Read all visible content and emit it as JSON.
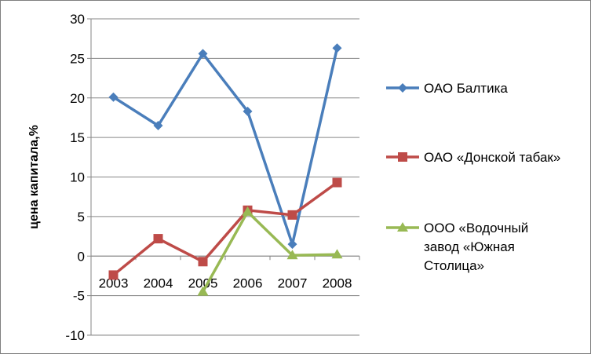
{
  "chart_data": {
    "type": "line",
    "categories": [
      "2003",
      "2004",
      "2005",
      "2006",
      "2007",
      "2008"
    ],
    "ylabel": "цена капитала,%",
    "xlabel": "",
    "title": "",
    "ylim": [
      -10,
      30
    ],
    "yticks": [
      "-10",
      "-5",
      "0",
      "5",
      "10",
      "15",
      "20",
      "25",
      "30"
    ],
    "grid": "horizontal",
    "legend_position": "right",
    "series": [
      {
        "name": "ОАО Балтика",
        "color": "#4a7ebb",
        "marker": "diamond",
        "values": [
          20.1,
          16.5,
          25.6,
          18.3,
          1.5,
          26.3
        ]
      },
      {
        "name": "ОАО «Донской табак»",
        "color": "#be4b48",
        "marker": "square",
        "values": [
          -2.4,
          2.2,
          -0.7,
          5.8,
          5.2,
          9.3
        ]
      },
      {
        "name_lines": [
          "ООО «Водочный",
          "завод «Южная",
          "Столица»"
        ],
        "name": "ООО «Водочный завод «Южная Столица»",
        "color": "#98b954",
        "marker": "triangle",
        "values": [
          null,
          null,
          -4.5,
          5.6,
          0.1,
          0.2
        ]
      }
    ]
  }
}
